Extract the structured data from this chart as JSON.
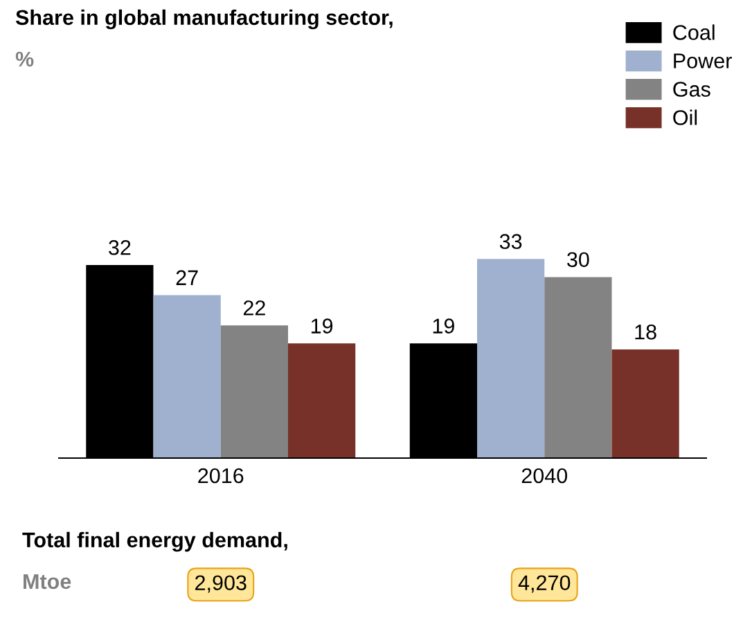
{
  "chart_data": {
    "type": "bar",
    "title": "Share in global manufacturing sector,",
    "subtitle": "%",
    "categories": [
      "2016",
      "2040"
    ],
    "series": [
      {
        "name": "Coal",
        "color": "#000000",
        "values": [
          32,
          19
        ]
      },
      {
        "name": "Power",
        "color": "#9fb1cf",
        "values": [
          27,
          33
        ]
      },
      {
        "name": "Gas",
        "color": "#838383",
        "values": [
          22,
          30
        ]
      },
      {
        "name": "Oil",
        "color": "#773128",
        "values": [
          19,
          18
        ]
      }
    ],
    "data_labels": true,
    "legend": "top right",
    "grid": false,
    "annotations": [
      "Total final energy demand,",
      "Mtoe",
      "2,903",
      "4,270"
    ]
  }
}
